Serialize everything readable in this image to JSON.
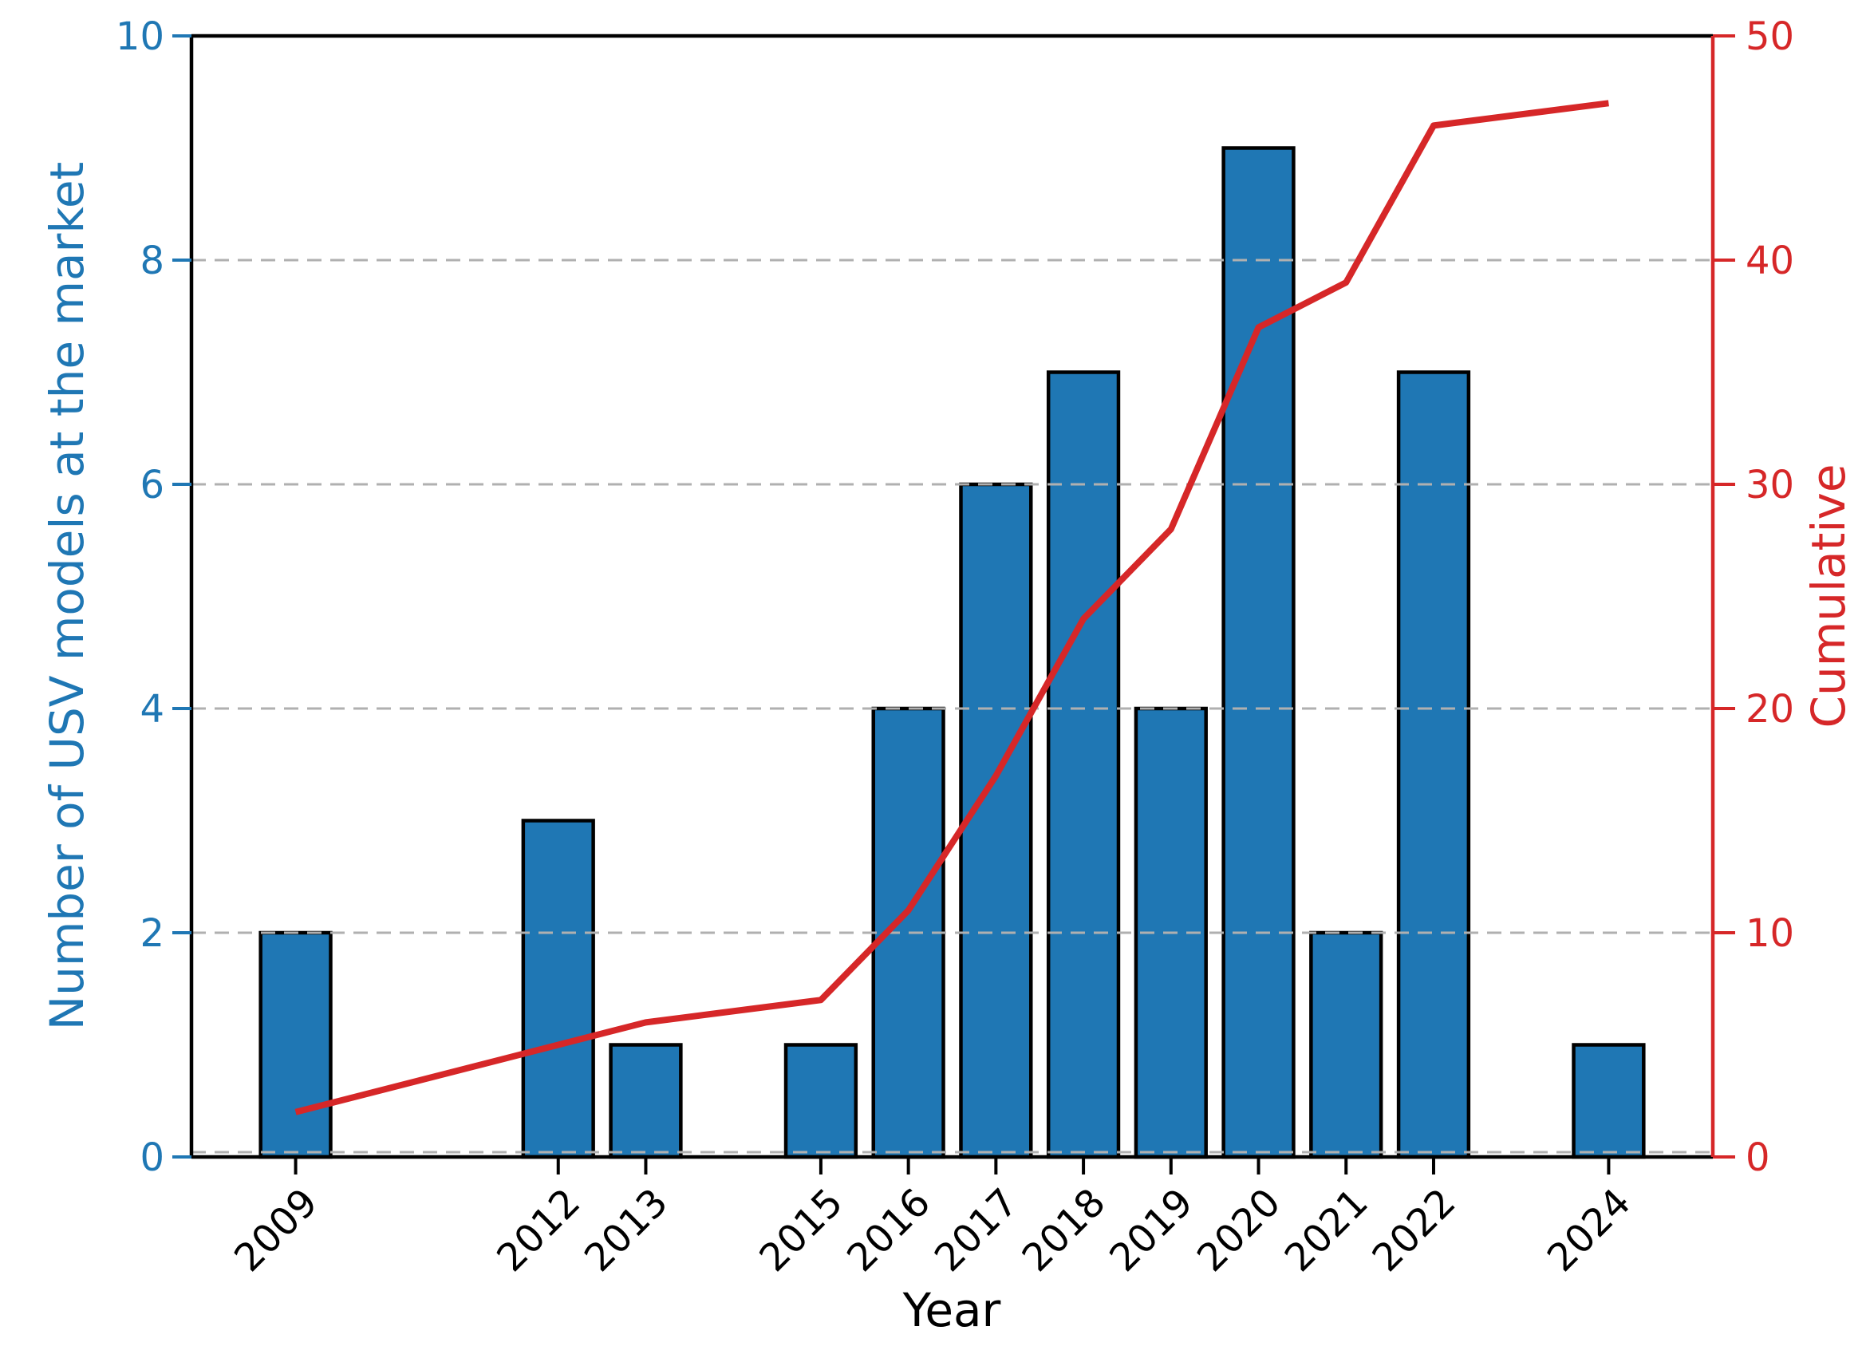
{
  "chart_data": {
    "type": "bar",
    "title": "",
    "xlabel": "Year",
    "categories": [
      "2009",
      "2012",
      "2013",
      "2015",
      "2016",
      "2017",
      "2018",
      "2019",
      "2020",
      "2021",
      "2022",
      "2024"
    ],
    "years_numeric": [
      2009,
      2012,
      2013,
      2015,
      2016,
      2017,
      2018,
      2019,
      2020,
      2021,
      2022,
      2024
    ],
    "series": [
      {
        "name": "Number of USV models at the market",
        "type": "bar",
        "axis": "left",
        "values": [
          2,
          3,
          1,
          1,
          4,
          6,
          7,
          4,
          9,
          2,
          7,
          1
        ],
        "fill_color": "#1f77b4",
        "edge_color": "#000000",
        "bar_width_years": 0.8
      },
      {
        "name": "Cumulative",
        "type": "line",
        "axis": "right",
        "values": [
          2,
          5,
          6,
          7,
          11,
          17,
          24,
          28,
          37,
          39,
          46,
          47
        ],
        "color": "#d62728"
      }
    ],
    "left_axis": {
      "label": "Number of USV models at the market",
      "color": "#1f77b4",
      "spine_color": "#000000",
      "ticks": [
        0,
        2,
        4,
        6,
        8,
        10
      ],
      "tick_labels": [
        "0",
        "2",
        "4",
        "6",
        "8",
        "10"
      ],
      "lim": [
        0,
        10
      ]
    },
    "right_axis": {
      "label": "Cumulative",
      "color": "#d62728",
      "spine_color": "#d62728",
      "ticks": [
        0,
        10,
        20,
        30,
        40,
        50
      ],
      "tick_labels": [
        "0",
        "10",
        "20",
        "30",
        "40",
        "50"
      ],
      "lim": [
        0,
        50
      ]
    },
    "x_axis": {
      "label": "Year",
      "color": "#000000",
      "lim": [
        2007.81,
        2025.19
      ],
      "tick_label_rotation_deg": 45
    },
    "grid": {
      "show": true,
      "orientation": "horizontal",
      "style": "dashed",
      "color": "#b0b0b0",
      "on_left_values": [
        0,
        2,
        4,
        6,
        8
      ]
    },
    "legend_position": "none",
    "background": "#ffffff"
  }
}
